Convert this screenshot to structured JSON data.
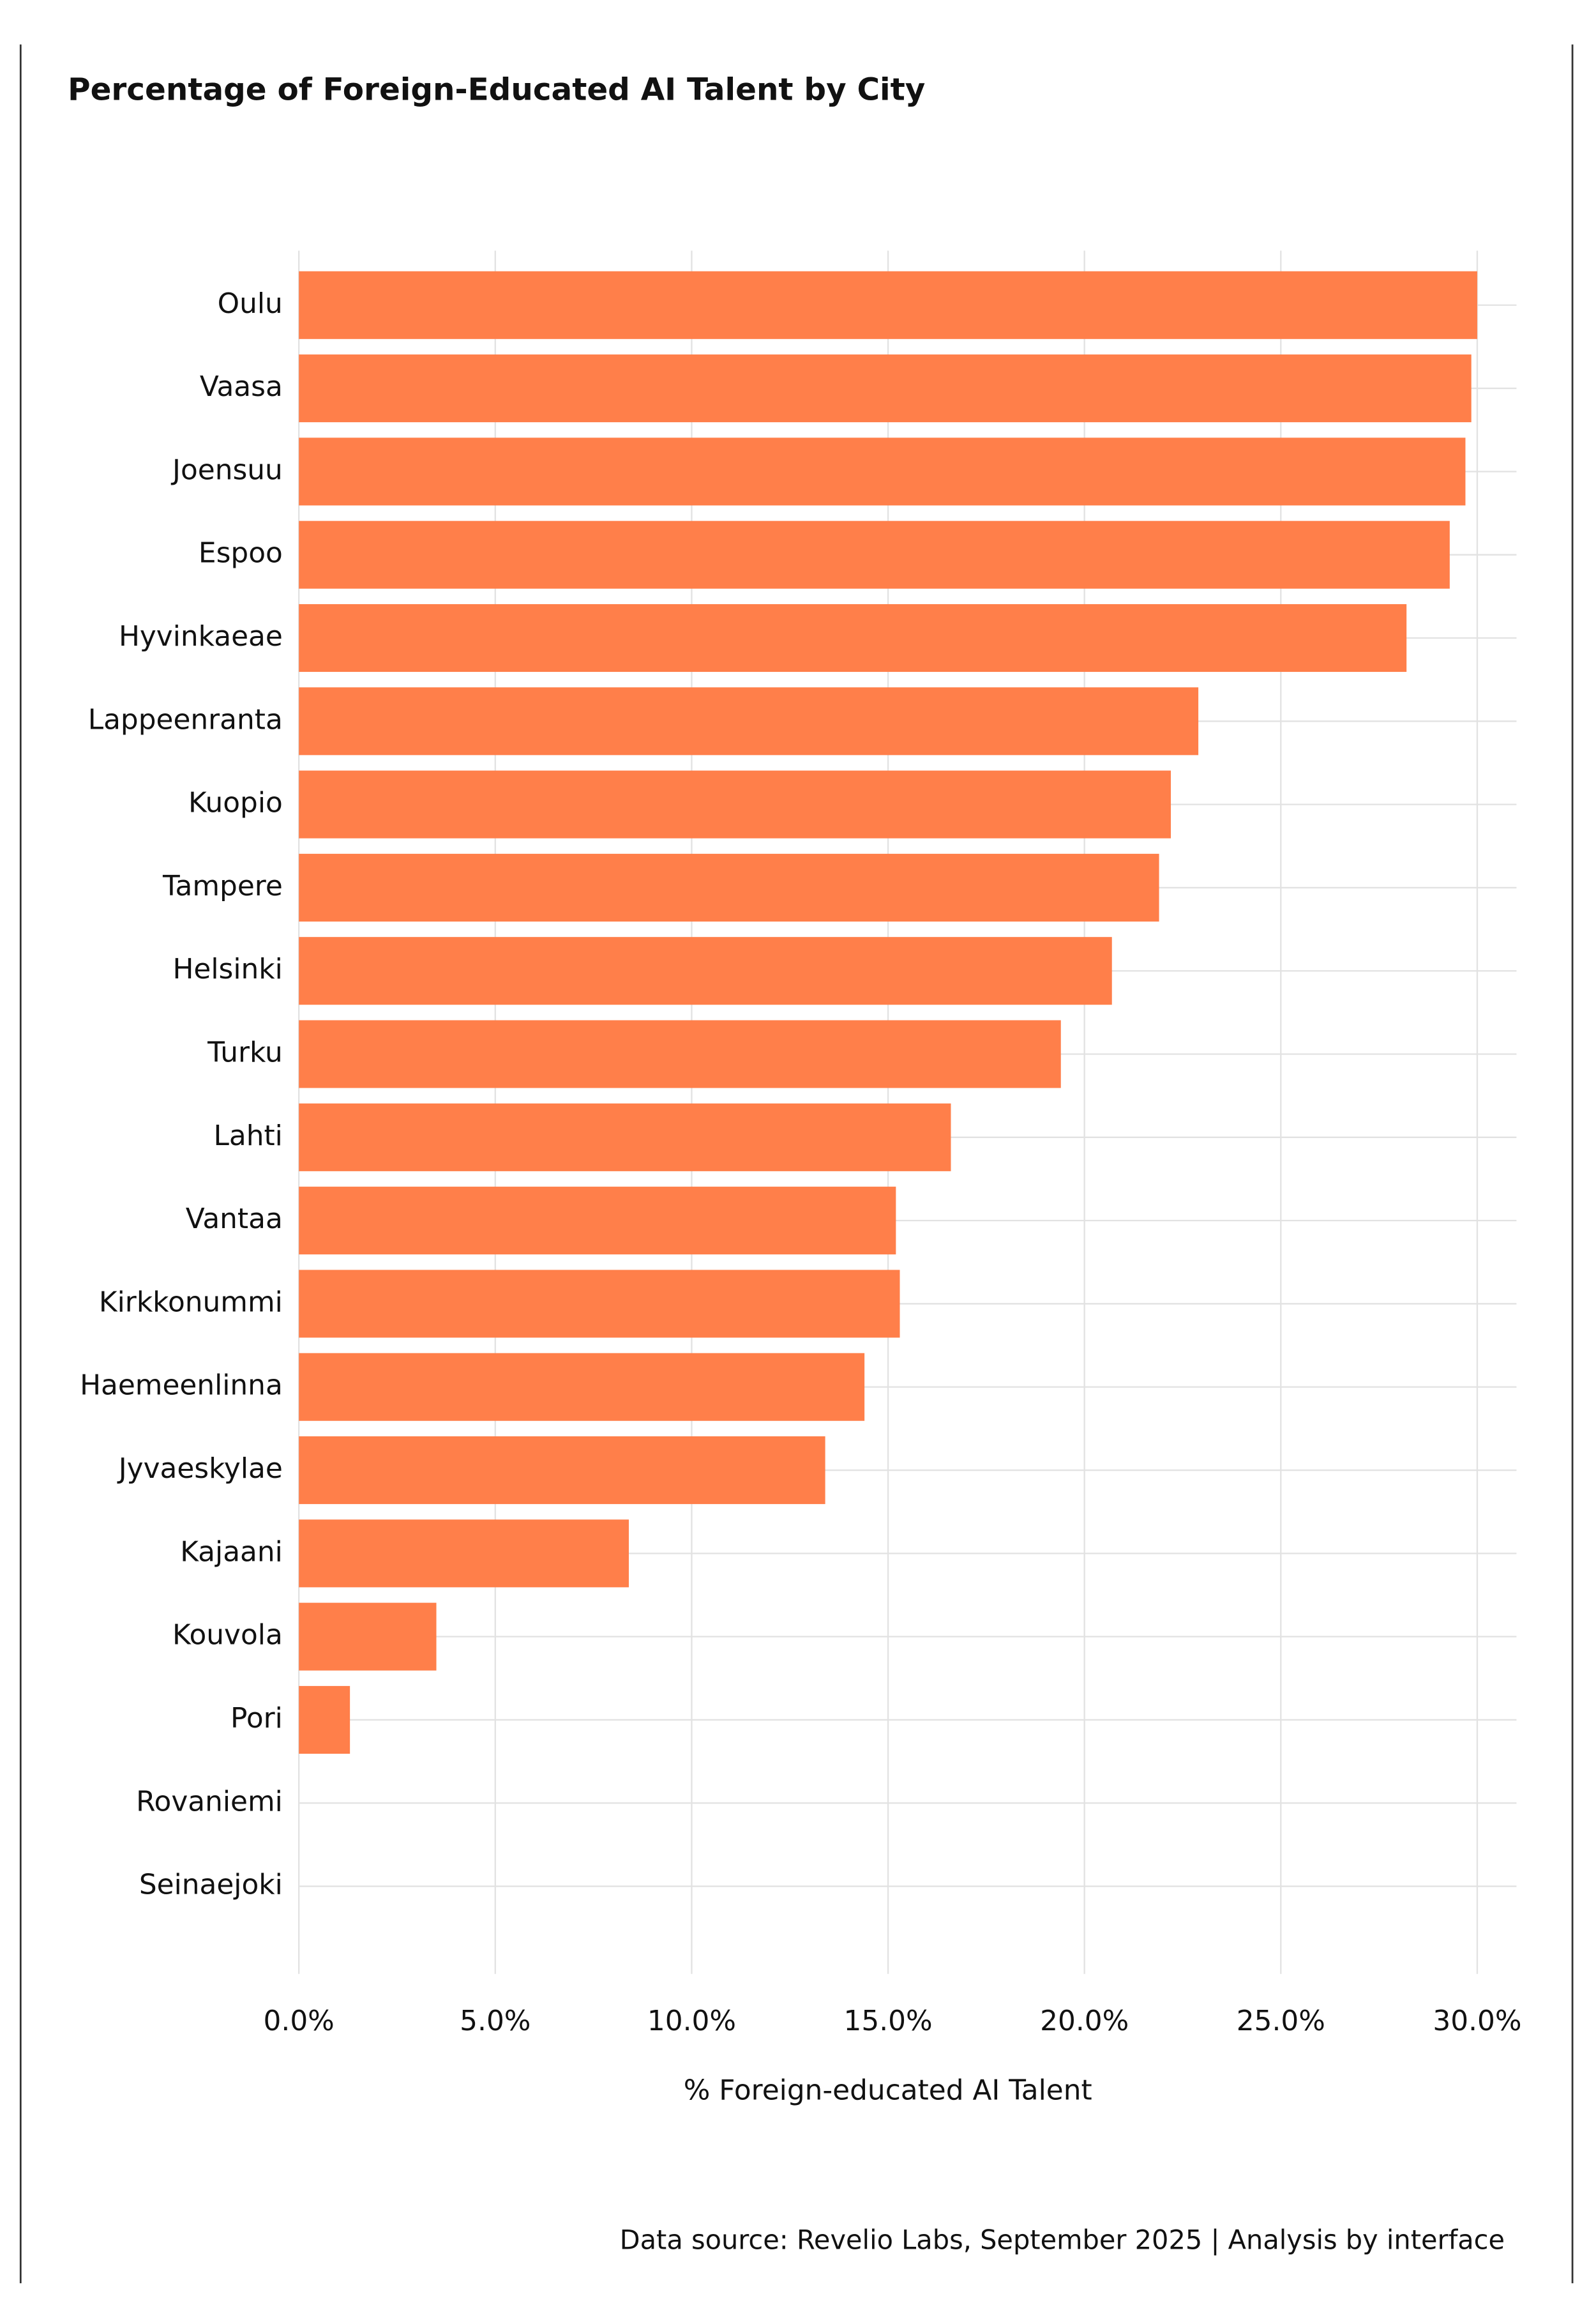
{
  "chart_data": {
    "type": "bar",
    "orientation": "horizontal",
    "title": "Percentage of Foreign-Educated AI Talent by City",
    "categories": [
      "Oulu",
      "Vaasa",
      "Joensuu",
      "Espoo",
      "Hyvinkaeae",
      "Lappeenranta",
      "Kuopio",
      "Tampere",
      "Helsinki",
      "Turku",
      "Lahti",
      "Vantaa",
      "Kirkkonummi",
      "Haemeenlinna",
      "Jyvaeskylae",
      "Kajaani",
      "Kouvola",
      "Pori",
      "Rovaniemi",
      "Seinaejoki"
    ],
    "values": [
      30.0,
      29.85,
      29.7,
      29.3,
      28.2,
      22.9,
      22.2,
      21.9,
      20.7,
      19.4,
      16.6,
      15.2,
      15.3,
      14.4,
      13.4,
      8.4,
      3.5,
      1.3,
      0,
      0
    ],
    "color": "#ff7f4a",
    "xlabel": "% Foreign-educated AI Talent",
    "xlim": [
      0,
      31
    ],
    "xticks": [
      {
        "value": 0,
        "label": "0.0%"
      },
      {
        "value": 5,
        "label": "5.0%"
      },
      {
        "value": 10,
        "label": "10.0%"
      },
      {
        "value": 15,
        "label": "15.0%"
      },
      {
        "value": 20,
        "label": "20.0%"
      },
      {
        "value": 25,
        "label": "25.0%"
      },
      {
        "value": 30,
        "label": "30.0%"
      }
    ],
    "grid": true,
    "source": "Data source: Revelio Labs, September 2025 | Analysis by interface"
  }
}
